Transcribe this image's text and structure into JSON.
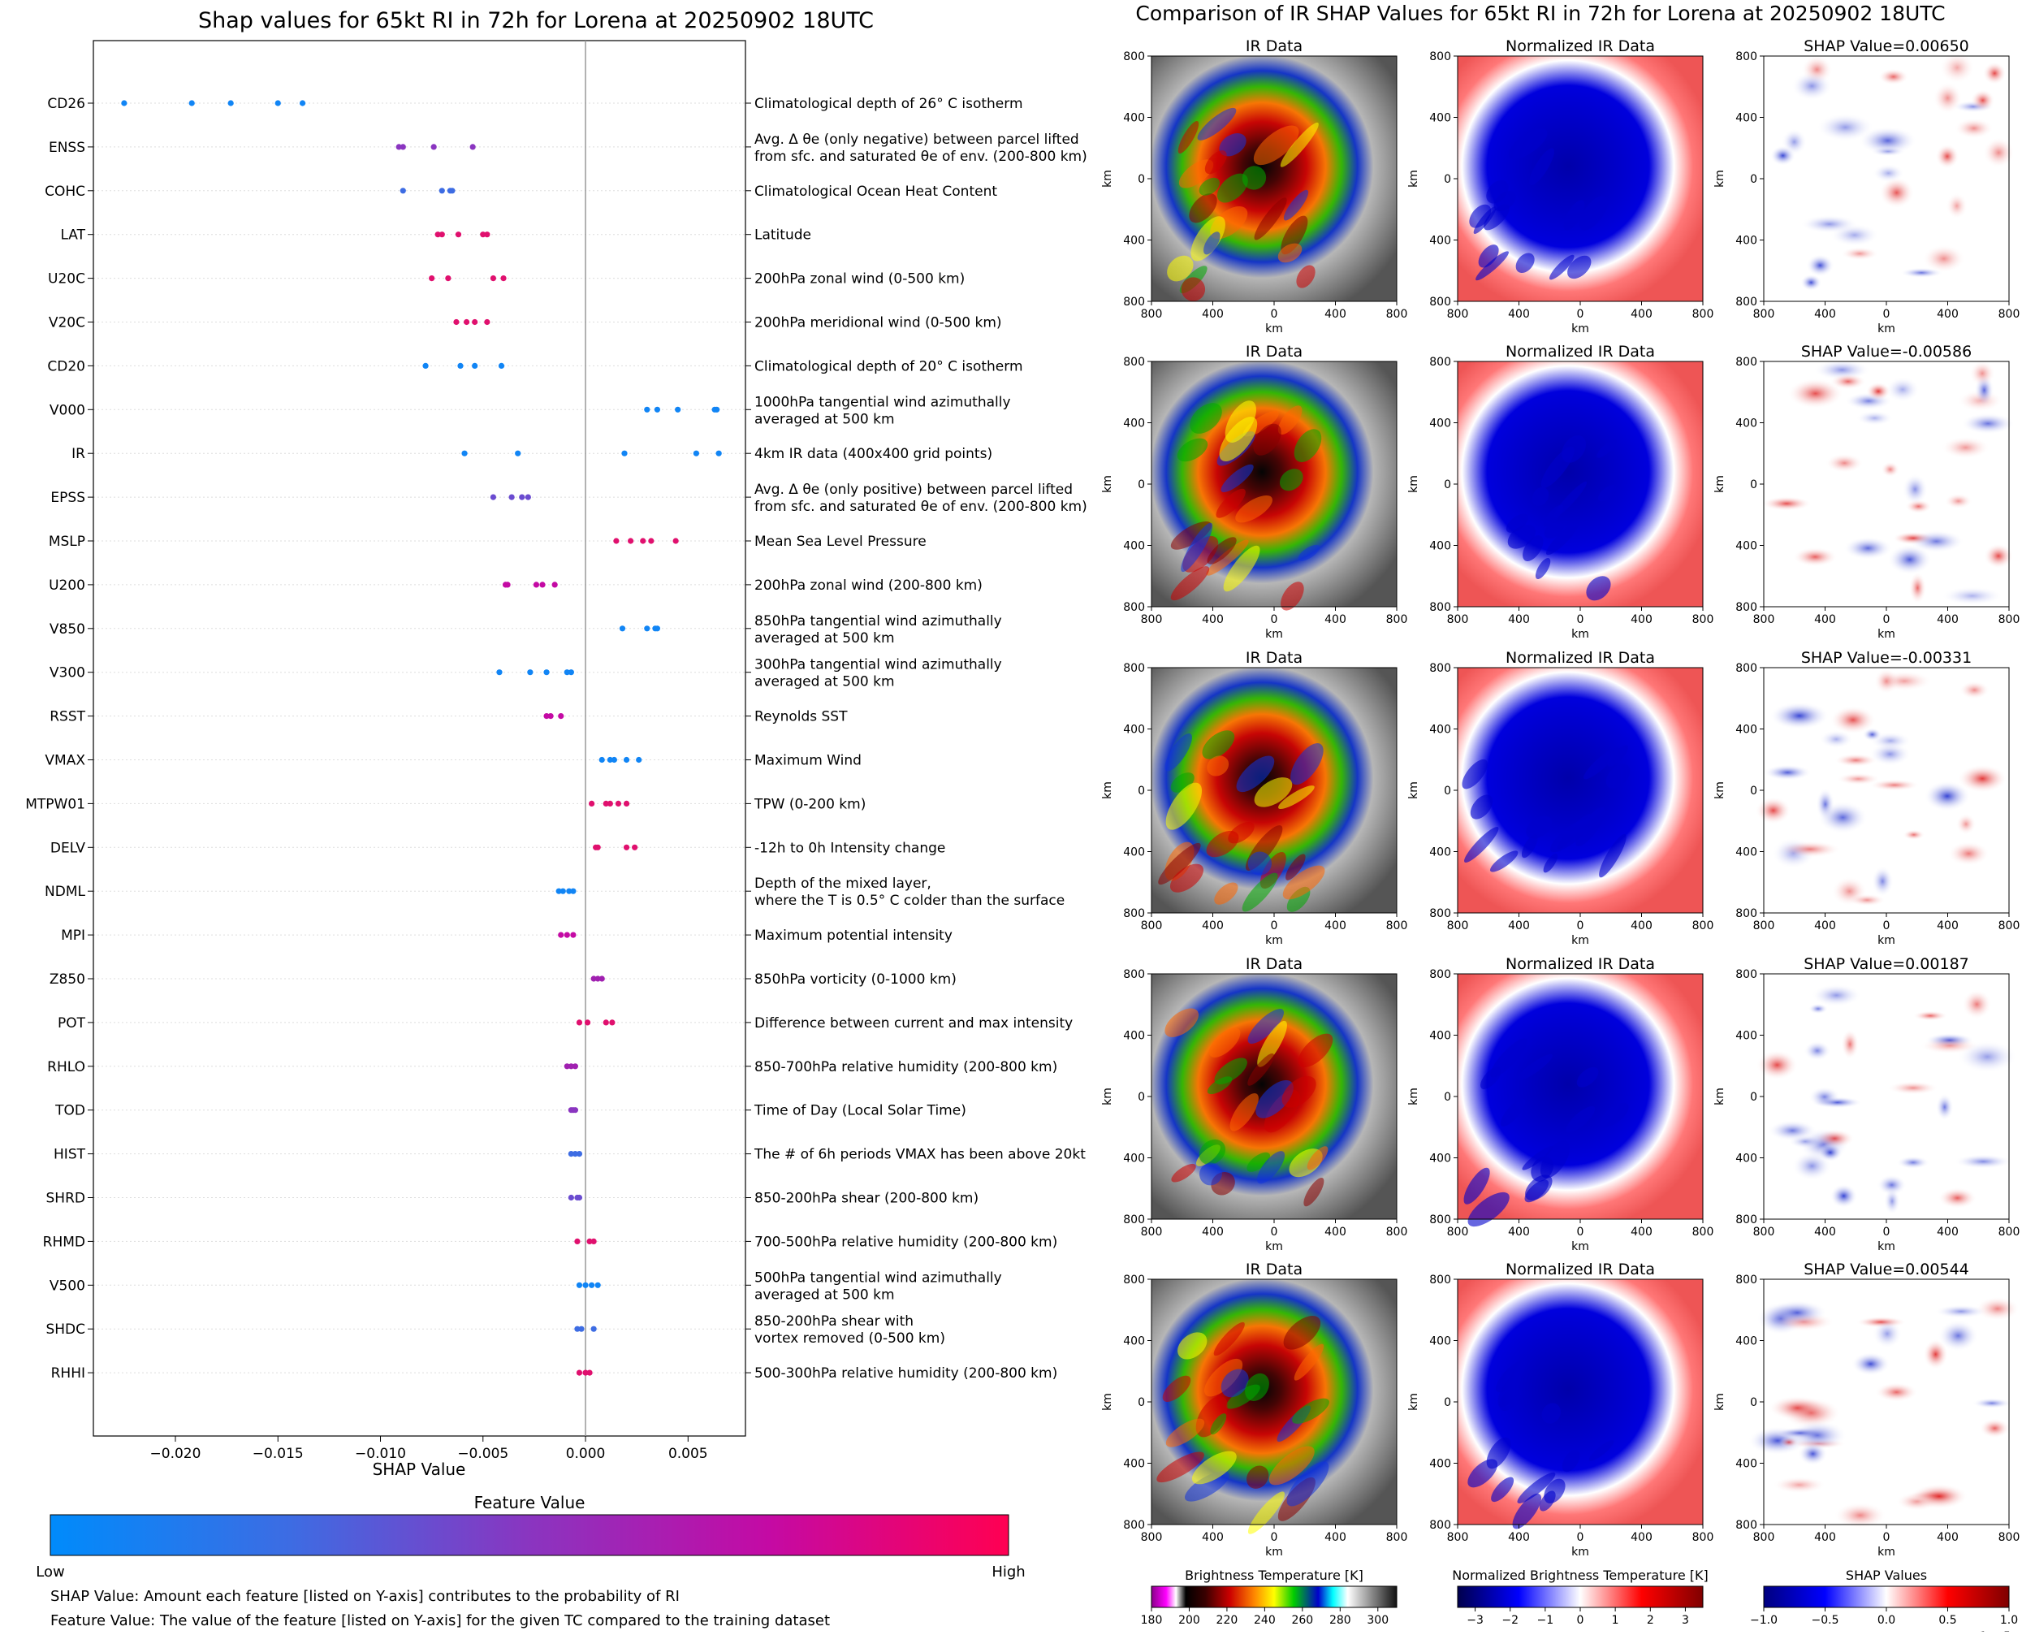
{
  "left_panel": {
    "title": "Shap values for 65kt RI in 72h for Lorena at 20250902 18UTC",
    "xlabel": "SHAP Value",
    "colorbar_title": "Feature Value",
    "colorbar_low": "Low",
    "colorbar_high": "High",
    "colorbar_colors": [
      "#008bfb",
      "#3d6ce3",
      "#8a35c0",
      "#c40aa4",
      "#ff0052"
    ],
    "note1": "SHAP Value: Amount each feature [listed on Y-axis] contributes to the probability of RI",
    "note2": "Feature Value: The value of the feature [listed on Y-axis] for the given TC compared to the training dataset"
  },
  "right_panel": {
    "title": "Comparison of IR SHAP Values for 65kt RI in 72h for Lorena at 20250902 18UTC",
    "col_titles": [
      "IR Data",
      "Normalized IR Data"
    ],
    "shap_titles": [
      "SHAP Value=0.00650",
      "SHAP Value=-0.00586",
      "SHAP Value=-0.00331",
      "SHAP Value=0.00187",
      "SHAP Value=0.00544"
    ],
    "axis_label": "km",
    "tick_labels": [
      "800",
      "400",
      "0",
      "400",
      "800"
    ],
    "colorbars": [
      {
        "title": "Brightness Temperature [K]",
        "ticks": [
          "180",
          "200",
          "220",
          "240",
          "260",
          "280",
          "300"
        ]
      },
      {
        "title": "Normalized Brightness Temperature [K]",
        "ticks": [
          "−3",
          "−2",
          "−1",
          "0",
          "1",
          "2",
          "3"
        ]
      },
      {
        "title": "SHAP Values",
        "ticks": [
          "−1.0",
          "−0.5",
          "0.0",
          "0.5",
          "1.0"
        ],
        "offset": "1e−5"
      }
    ]
  },
  "chart_data": {
    "type": "scatter",
    "title": "Shap values for 65kt RI in 72h for Lorena at 20250902 18UTC",
    "xlabel": "SHAP Value",
    "xlim": [
      -0.024,
      0.0078
    ],
    "xticks": [
      -0.02,
      -0.015,
      -0.01,
      -0.005,
      0.0,
      0.005
    ],
    "xtick_labels": [
      "−0.020",
      "−0.015",
      "−0.010",
      "−0.005",
      "0.000",
      "0.005"
    ],
    "features": [
      {
        "name": "CD26",
        "desc": [
          "Climatological depth of 26° C isotherm"
        ],
        "color": "#1185f5",
        "values": [
          -0.0225,
          -0.0192,
          -0.0173,
          -0.015,
          -0.0138
        ]
      },
      {
        "name": "ENSS",
        "desc": [
          "Avg. Δ θe (only negative) between parcel lifted",
          "from sfc. and saturated θe of env. (200-800 km)"
        ],
        "color": "#8a35c0",
        "values": [
          -0.0091,
          -0.0089,
          -0.0074,
          -0.0055
        ]
      },
      {
        "name": "COHC",
        "desc": [
          "Climatological Ocean Heat Content"
        ],
        "color": "#3d6ce3",
        "values": [
          -0.0089,
          -0.007,
          -0.0066,
          -0.0065
        ]
      },
      {
        "name": "LAT",
        "desc": [
          "Latitude"
        ],
        "color": "#e0106e",
        "values": [
          -0.0072,
          -0.007,
          -0.0062,
          -0.005,
          -0.0048
        ]
      },
      {
        "name": "U20C",
        "desc": [
          "200hPa zonal wind (0-500 km)"
        ],
        "color": "#e0106e",
        "values": [
          -0.0075,
          -0.0067,
          -0.0045,
          -0.004
        ]
      },
      {
        "name": "V20C",
        "desc": [
          "200hPa meridional wind (0-500 km)"
        ],
        "color": "#e0106e",
        "values": [
          -0.0063,
          -0.0058,
          -0.0054,
          -0.0048
        ]
      },
      {
        "name": "CD20",
        "desc": [
          "Climatological depth of 20° C isotherm"
        ],
        "color": "#1185f5",
        "values": [
          -0.0078,
          -0.0061,
          -0.0054,
          -0.0041
        ]
      },
      {
        "name": "V000",
        "desc": [
          "1000hPa tangential wind azimuthally",
          "averaged at 500 km"
        ],
        "color": "#1185f5",
        "values": [
          0.003,
          0.0035,
          0.0045,
          0.0063,
          0.0064
        ]
      },
      {
        "name": "IR",
        "desc": [
          "4km IR data (400x400 grid points)"
        ],
        "color": "#1185f5",
        "values": [
          -0.0059,
          -0.0033,
          0.0019,
          0.0054,
          0.0065
        ]
      },
      {
        "name": "EPSS",
        "desc": [
          "Avg. Δ θe (only positive) between parcel lifted",
          "from sfc. and saturated θe of env. (200-800 km)"
        ],
        "color": "#6a4bd0",
        "values": [
          -0.0045,
          -0.0036,
          -0.0031,
          -0.0028
        ]
      },
      {
        "name": "MSLP",
        "desc": [
          "Mean Sea Level Pressure"
        ],
        "color": "#e0106e",
        "values": [
          0.0015,
          0.0022,
          0.0028,
          0.0032,
          0.0044
        ]
      },
      {
        "name": "U200",
        "desc": [
          "200hPa zonal wind (200-800 km)"
        ],
        "color": "#c40aa4",
        "values": [
          -0.0039,
          -0.0038,
          -0.0024,
          -0.0021,
          -0.0015
        ]
      },
      {
        "name": "V850",
        "desc": [
          "850hPa tangential wind azimuthally",
          "averaged at 500 km"
        ],
        "color": "#1185f5",
        "values": [
          0.0018,
          0.003,
          0.0034,
          0.0035
        ]
      },
      {
        "name": "V300",
        "desc": [
          "300hPa tangential wind azimuthally",
          "averaged at 500 km"
        ],
        "color": "#1185f5",
        "values": [
          -0.0042,
          -0.0027,
          -0.0019,
          -0.0009,
          -0.0007
        ]
      },
      {
        "name": "RSST",
        "desc": [
          "Reynolds SST"
        ],
        "color": "#c40aa4",
        "values": [
          -0.0019,
          -0.0017,
          -0.0012
        ]
      },
      {
        "name": "VMAX",
        "desc": [
          "Maximum Wind"
        ],
        "color": "#1185f5",
        "values": [
          0.0008,
          0.0012,
          0.0014,
          0.002,
          0.0026
        ]
      },
      {
        "name": "MTPW01",
        "desc": [
          "TPW (0-200 km)"
        ],
        "color": "#e0106e",
        "values": [
          0.0003,
          0.001,
          0.0012,
          0.0016,
          0.002
        ]
      },
      {
        "name": "DELV",
        "desc": [
          "-12h to 0h Intensity change"
        ],
        "color": "#e0106e",
        "values": [
          0.0005,
          0.0006,
          0.002,
          0.0024
        ]
      },
      {
        "name": "NDML",
        "desc": [
          "Depth of the mixed layer,",
          "where the T is 0.5° C colder than the surface"
        ],
        "color": "#1185f5",
        "values": [
          -0.0013,
          -0.0011,
          -0.0008,
          -0.0006
        ]
      },
      {
        "name": "MPI",
        "desc": [
          "Maximum potential intensity"
        ],
        "color": "#c40aa4",
        "values": [
          -0.0012,
          -0.0009,
          -0.0006
        ]
      },
      {
        "name": "Z850",
        "desc": [
          "850hPa vorticity (0-1000 km)"
        ],
        "color": "#a020b0",
        "values": [
          0.0004,
          0.0006,
          0.0008
        ]
      },
      {
        "name": "POT",
        "desc": [
          "Difference between current and max intensity"
        ],
        "color": "#e0106e",
        "values": [
          -0.0003,
          0.0001,
          0.001,
          0.0013
        ]
      },
      {
        "name": "RHLO",
        "desc": [
          "850-700hPa relative humidity (200-800 km)"
        ],
        "color": "#a020b0",
        "values": [
          -0.0009,
          -0.0007,
          -0.0005
        ]
      },
      {
        "name": "TOD",
        "desc": [
          "Time of Day (Local Solar Time)"
        ],
        "color": "#8a35c0",
        "values": [
          -0.0007,
          -0.0006,
          -0.0005
        ]
      },
      {
        "name": "HIST",
        "desc": [
          "The # of 6h periods VMAX has been above 20kt"
        ],
        "color": "#3d6ce3",
        "values": [
          -0.0007,
          -0.0005,
          -0.0003
        ]
      },
      {
        "name": "SHRD",
        "desc": [
          "850-200hPa shear (200-800 km)"
        ],
        "color": "#6a4bd0",
        "values": [
          -0.0007,
          -0.0004,
          -0.0003
        ]
      },
      {
        "name": "RHMD",
        "desc": [
          "700-500hPa relative humidity (200-800 km)"
        ],
        "color": "#e0106e",
        "values": [
          -0.0004,
          0.0002,
          0.0004
        ]
      },
      {
        "name": "V500",
        "desc": [
          "500hPa tangential wind azimuthally",
          "averaged at 500 km"
        ],
        "color": "#1185f5",
        "values": [
          -0.0003,
          0.0,
          0.0003,
          0.0006
        ]
      },
      {
        "name": "SHDC",
        "desc": [
          "850-200hPa shear with",
          "vortex removed (0-500 km)"
        ],
        "color": "#3d6ce3",
        "values": [
          -0.0004,
          -0.0002,
          0.0004
        ]
      },
      {
        "name": "RHHI",
        "desc": [
          "500-300hPa relative humidity (200-800 km)"
        ],
        "color": "#e0106e",
        "values": [
          -0.0003,
          0.0,
          0.0002
        ]
      }
    ]
  }
}
